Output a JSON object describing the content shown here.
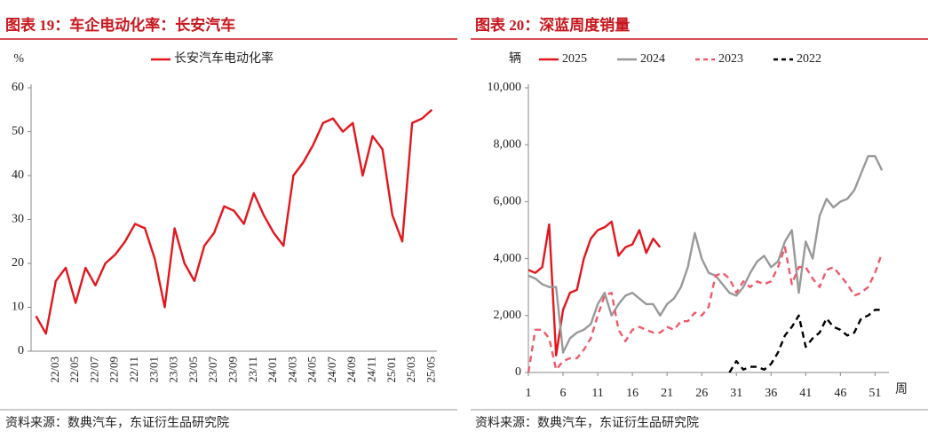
{
  "chart_data": [
    {
      "type": "line",
      "title": "图表 19：车企电动化率：长安汽车",
      "y_label": "%",
      "categories": [
        "22/01",
        "22/02",
        "22/03",
        "22/04",
        "22/05",
        "22/06",
        "22/07",
        "22/08",
        "22/09",
        "22/10",
        "22/11",
        "22/12",
        "23/01",
        "23/02",
        "23/03",
        "23/04",
        "23/05",
        "23/06",
        "23/07",
        "23/08",
        "23/09",
        "23/10",
        "23/11",
        "23/12",
        "24/01",
        "24/02",
        "24/03",
        "24/04",
        "24/05",
        "24/06",
        "24/07",
        "24/08",
        "24/09",
        "24/10",
        "24/11",
        "24/12",
        "25/01",
        "25/02",
        "25/03",
        "25/04",
        "25/05"
      ],
      "tick_labels": [
        null,
        null,
        "22/03",
        null,
        "22/05",
        null,
        "22/07",
        null,
        "22/09",
        null,
        "22/11",
        null,
        "23/01",
        null,
        "23/03",
        null,
        "23/05",
        null,
        "23/07",
        null,
        "23/09",
        null,
        "23/11",
        null,
        "24/01",
        null,
        "24/03",
        null,
        "24/05",
        null,
        "24/07",
        null,
        "24/09",
        null,
        "24/11",
        null,
        "25/01",
        null,
        "25/03",
        null,
        "25/05"
      ],
      "series": [
        {
          "name": "长安汽车电动化率",
          "color": "#e3161d",
          "values": [
            8,
            4,
            16,
            19,
            11,
            19,
            15,
            20,
            22,
            25,
            29,
            28,
            21,
            10,
            28,
            20,
            16,
            24,
            27,
            33,
            32,
            29,
            36,
            31,
            27,
            24,
            40,
            43,
            47,
            52,
            53,
            50,
            52,
            40,
            49,
            46,
            31,
            25,
            52,
            53,
            55
          ]
        }
      ],
      "ylim": [
        0,
        60
      ],
      "yticks": [
        0,
        10,
        20,
        30,
        40,
        50,
        60
      ],
      "source": "资料来源：数典汽车，东证衍生品研究院"
    },
    {
      "type": "line",
      "title": "图表 20：深蓝周度销量",
      "y_label": "辆",
      "x_label": "周",
      "x": [
        1,
        2,
        3,
        4,
        5,
        6,
        7,
        8,
        9,
        10,
        11,
        12,
        13,
        14,
        15,
        16,
        17,
        18,
        19,
        20,
        21,
        22,
        23,
        24,
        25,
        26,
        27,
        28,
        29,
        30,
        31,
        32,
        33,
        34,
        35,
        36,
        37,
        38,
        39,
        40,
        41,
        42,
        43,
        44,
        45,
        46,
        47,
        48,
        49,
        50,
        51,
        52
      ],
      "series": [
        {
          "name": "2025",
          "color": "#e3161d",
          "style": "solid",
          "values": [
            3600,
            3500,
            3700,
            5200,
            600,
            2200,
            2800,
            2900,
            4000,
            4700,
            5000,
            5100,
            5300,
            4100,
            4400,
            4500,
            5000,
            4200,
            4700,
            4400,
            null,
            null,
            null,
            null,
            null,
            null,
            null,
            null,
            null,
            null,
            null,
            null,
            null,
            null,
            null,
            null,
            null,
            null,
            null,
            null,
            null,
            null,
            null,
            null,
            null,
            null,
            null,
            null,
            null,
            null,
            null,
            null
          ]
        },
        {
          "name": "2024",
          "color": "#999999",
          "style": "solid",
          "values": [
            3400,
            3300,
            3100,
            3000,
            3000,
            700,
            1200,
            1400,
            1500,
            1700,
            2400,
            2800,
            2000,
            2400,
            2700,
            2800,
            2600,
            2400,
            2400,
            2000,
            2400,
            2600,
            3000,
            3700,
            4900,
            4000,
            3500,
            3400,
            3100,
            2800,
            2700,
            3000,
            3500,
            3900,
            4100,
            3700,
            3900,
            4600,
            5000,
            2800,
            4600,
            4000,
            5500,
            6100,
            5800,
            6000,
            6100,
            6400,
            7000,
            7600,
            7600,
            7100
          ]
        },
        {
          "name": "2023",
          "color": "#f05a6a",
          "style": "dashed",
          "values": [
            0,
            1500,
            1500,
            1200,
            100,
            400,
            500,
            500,
            800,
            1200,
            2000,
            2700,
            2800,
            1500,
            1100,
            1500,
            1600,
            1500,
            1400,
            1400,
            1600,
            1500,
            1800,
            1800,
            2100,
            2000,
            2300,
            3400,
            3500,
            3300,
            2800,
            3200,
            3000,
            3200,
            3100,
            3200,
            3700,
            4400,
            3100,
            3700,
            3700,
            3300,
            3000,
            3600,
            3700,
            3400,
            3100,
            2700,
            2800,
            3000,
            3500,
            4200
          ]
        },
        {
          "name": "2022",
          "color": "#000000",
          "style": "dashed",
          "values": [
            null,
            null,
            null,
            null,
            null,
            null,
            null,
            null,
            null,
            null,
            null,
            null,
            null,
            null,
            null,
            null,
            null,
            null,
            null,
            null,
            null,
            null,
            null,
            null,
            null,
            null,
            null,
            null,
            null,
            0,
            400,
            100,
            200,
            200,
            100,
            300,
            700,
            1300,
            1600,
            2000,
            900,
            1200,
            1400,
            1900,
            1600,
            1500,
            1300,
            1400,
            1900,
            2000,
            2200,
            2200
          ]
        }
      ],
      "xlim": [
        1,
        53
      ],
      "xticks": [
        1,
        6,
        11,
        16,
        21,
        26,
        31,
        36,
        41,
        46,
        51
      ],
      "ylim": [
        0,
        10000
      ],
      "yticks": [
        0,
        {
          "value": 2000,
          "label": "2,000"
        },
        {
          "value": 4000,
          "label": "4,000"
        },
        {
          "value": 6000,
          "label": "6,000"
        },
        {
          "value": 8000,
          "label": "8,000"
        },
        {
          "value": 10000,
          "label": "10,000"
        }
      ],
      "source": "资料来源：数典汽车，东证衍生品研究院"
    }
  ]
}
